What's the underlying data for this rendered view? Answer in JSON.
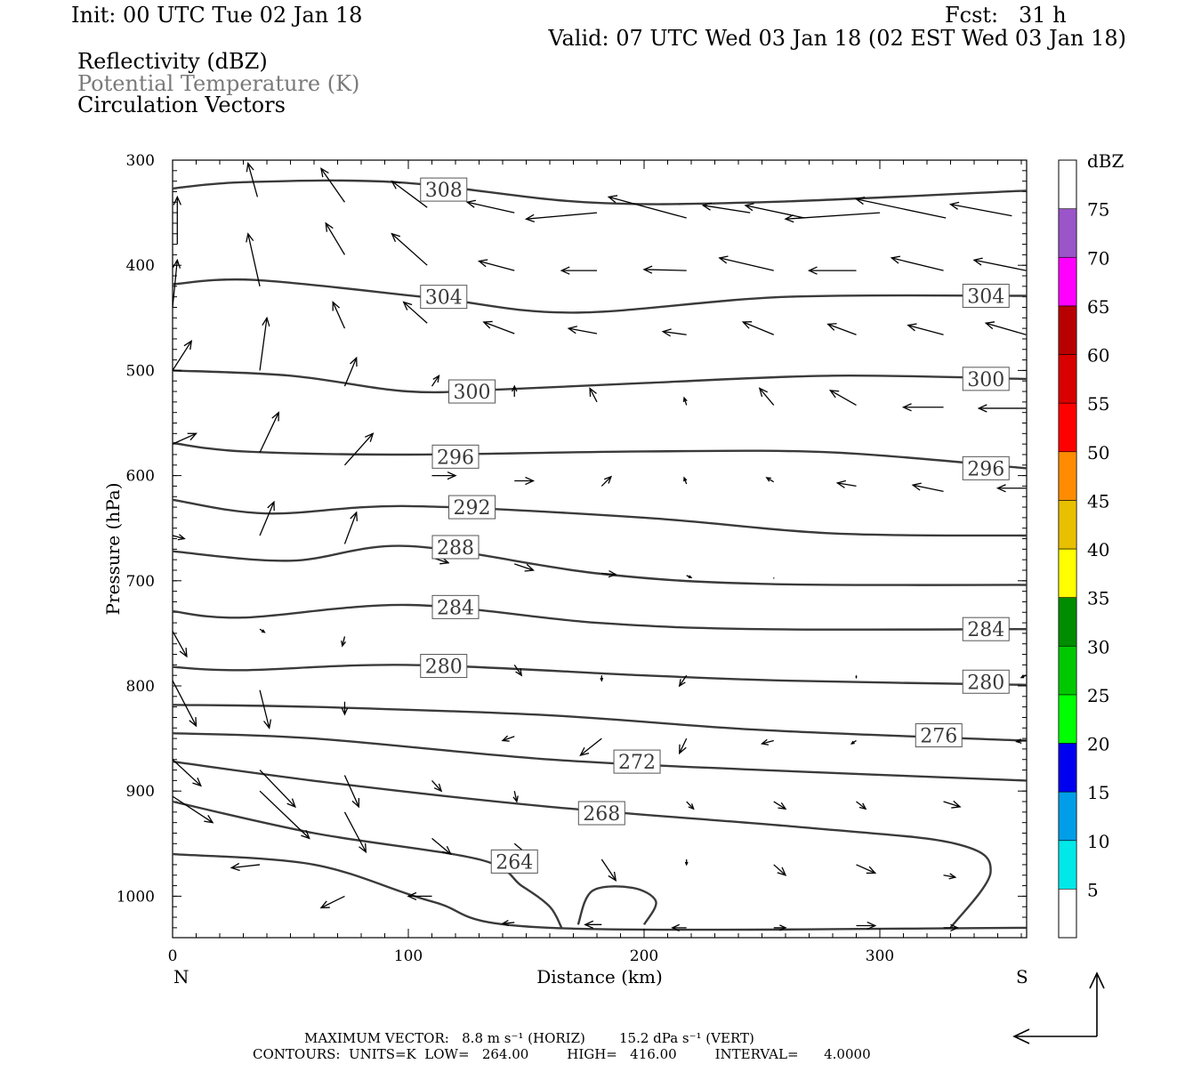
{
  "header": {
    "init": "Init: 00 UTC Tue 02 Jan 18",
    "fcst": "Fcst:   31 h",
    "valid": "Valid: 07 UTC Wed 03 Jan 18 (02 EST Wed 03 Jan 18)"
  },
  "legend": {
    "line1": "Reflectivity (dBZ)",
    "line2": "Potential Temperature (K)",
    "line3": "Circulation Vectors"
  },
  "axes": {
    "ylabel": "Pressure (hPa)",
    "xlabel": "Distance (km)",
    "left_end": "N",
    "right_end": "S"
  },
  "colorbar": {
    "title": "dBZ",
    "colors": [
      "#00e8e8",
      "#009ee8",
      "#0000f0",
      "#00ff00",
      "#00c800",
      "#008c00",
      "#ffff00",
      "#e8c000",
      "#ff8c00",
      "#ff0000",
      "#d80000",
      "#b80000",
      "#ff00ff",
      "#9a55c8"
    ]
  },
  "footer": {
    "line1": "MAXIMUM VECTOR:   8.8 m s⁻¹ (HORIZ)        15.2 dPa s⁻¹ (VERT)",
    "line2": "CONTOURS:  UNITS=K  LOW=   264.00         HIGH=   416.00         INTERVAL=      4.0000"
  },
  "chart_data": {
    "type": "line",
    "title": "",
    "xlabel": "Distance (km)",
    "ylabel": "Pressure (hPa)",
    "xlim": [
      0,
      362
    ],
    "ylim": [
      1040,
      300
    ],
    "x_ticks": [
      0,
      100,
      200,
      300
    ],
    "y_ticks": [
      300,
      400,
      500,
      600,
      700,
      800,
      900,
      1000
    ],
    "colorbar_ticks": [
      5,
      10,
      15,
      20,
      25,
      30,
      35,
      40,
      45,
      50,
      55,
      60,
      65,
      70,
      75
    ],
    "series": [
      {
        "name": "308",
        "x": [
          0,
          30,
          95,
          175,
          250,
          362
        ],
        "y": [
          327,
          321,
          321,
          340,
          340,
          329
        ],
        "label_at": [
          115,
          328
        ]
      },
      {
        "name": "304",
        "x": [
          0,
          35,
          110,
          170,
          260,
          362
        ],
        "y": [
          418,
          414,
          431,
          445,
          430,
          429
        ],
        "label_at": [
          115,
          430
        ],
        "label_at2": [
          345,
          429
        ]
      },
      {
        "name": "300",
        "x": [
          0,
          50,
          100,
          140,
          200,
          280,
          362
        ],
        "y": [
          500,
          505,
          520,
          518,
          512,
          505,
          508
        ],
        "label_at": [
          127,
          520
        ],
        "label_at2": [
          345,
          508
        ]
      },
      {
        "name": "296",
        "x": [
          0,
          30,
          100,
          200,
          280,
          362
        ],
        "y": [
          569,
          577,
          580,
          577,
          578,
          593
        ],
        "label_at": [
          120,
          582
        ],
        "label_at2": [
          345,
          593
        ]
      },
      {
        "name": "292",
        "x": [
          0,
          40,
          100,
          200,
          280,
          362
        ],
        "y": [
          623,
          636,
          629,
          640,
          655,
          657
        ],
        "label_at": [
          127,
          630
        ]
      },
      {
        "name": "288",
        "x": [
          0,
          50,
          100,
          180,
          250,
          362
        ],
        "y": [
          672,
          681,
          667,
          693,
          703,
          704
        ],
        "label_at": [
          120,
          668
        ]
      },
      {
        "name": "284",
        "x": [
          0,
          30,
          100,
          180,
          250,
          362
        ],
        "y": [
          729,
          735,
          723,
          740,
          746,
          746
        ],
        "label_at": [
          120,
          725
        ],
        "label_at2": [
          345,
          746
        ]
      },
      {
        "name": "280",
        "x": [
          0,
          30,
          100,
          200,
          260,
          362
        ],
        "y": [
          782,
          785,
          780,
          790,
          795,
          799
        ],
        "label_at": [
          115,
          781
        ],
        "label_at2": [
          345,
          796
        ]
      },
      {
        "name": "276",
        "x": [
          0,
          60,
          160,
          250,
          362
        ],
        "y": [
          818,
          820,
          828,
          842,
          852
        ],
        "label_at": [
          325,
          847
        ]
      },
      {
        "name": "272",
        "x": [
          0,
          60,
          160,
          250,
          362
        ],
        "y": [
          845,
          850,
          870,
          880,
          890
        ],
        "label_at": [
          197,
          872
        ]
      },
      {
        "name": "268",
        "x": [
          0,
          70,
          160,
          270,
          332,
          347,
          330
        ],
        "y": [
          872,
          893,
          915,
          935,
          950,
          977,
          1030
        ],
        "label_at": [
          182,
          921
        ]
      },
      {
        "name": "264",
        "x": [
          0,
          60,
          130,
          148,
          160,
          165
        ],
        "y": [
          910,
          940,
          965,
          990,
          1010,
          1030
        ],
        "label_at": [
          145,
          967
        ]
      },
      {
        "name": "",
        "x": [
          0,
          60,
          110,
          160,
          362
        ],
        "y": [
          960,
          970,
          1005,
          1030,
          1030
        ]
      },
      {
        "name": "",
        "x": [
          172,
          178,
          195,
          205,
          200
        ],
        "y": [
          1027,
          995,
          992,
          1005,
          1027
        ]
      }
    ],
    "vectors": [
      [
        2,
        380,
        2,
        335
      ],
      [
        36,
        335,
        32,
        303
      ],
      [
        73,
        340,
        63,
        308
      ],
      [
        108,
        345,
        93,
        320
      ],
      [
        145,
        350,
        125,
        340
      ],
      [
        180,
        350,
        150,
        356
      ],
      [
        218,
        355,
        185,
        335
      ],
      [
        245,
        350,
        225,
        343
      ],
      [
        268,
        355,
        243,
        343
      ],
      [
        300,
        350,
        260,
        356
      ],
      [
        328,
        355,
        290,
        337
      ],
      [
        356,
        353,
        330,
        342
      ],
      [
        0,
        440,
        2,
        395
      ],
      [
        37,
        420,
        32,
        370
      ],
      [
        73,
        390,
        65,
        360
      ],
      [
        108,
        400,
        93,
        370
      ],
      [
        145,
        405,
        130,
        396
      ],
      [
        180,
        405,
        165,
        405
      ],
      [
        218,
        405,
        200,
        404
      ],
      [
        255,
        405,
        232,
        393
      ],
      [
        290,
        405,
        270,
        405
      ],
      [
        327,
        405,
        305,
        393
      ],
      [
        362,
        405,
        340,
        395
      ],
      [
        0,
        500,
        8,
        472
      ],
      [
        37,
        500,
        40,
        450
      ],
      [
        73,
        460,
        68,
        435
      ],
      [
        108,
        455,
        98,
        435
      ],
      [
        145,
        465,
        132,
        454
      ],
      [
        180,
        465,
        168,
        460
      ],
      [
        218,
        466,
        208,
        463
      ],
      [
        255,
        466,
        242,
        454
      ],
      [
        290,
        466,
        278,
        456
      ],
      [
        327,
        466,
        312,
        457
      ],
      [
        362,
        466,
        345,
        455
      ],
      [
        73,
        515,
        78,
        488
      ],
      [
        110,
        515,
        113,
        505
      ],
      [
        145,
        525,
        145,
        515
      ],
      [
        180,
        530,
        177,
        517
      ],
      [
        218,
        533,
        217,
        526
      ],
      [
        255,
        533,
        249,
        517
      ],
      [
        290,
        533,
        279,
        519
      ],
      [
        327,
        535,
        310,
        535
      ],
      [
        362,
        536,
        342,
        536
      ],
      [
        0,
        570,
        10,
        560
      ],
      [
        37,
        578,
        45,
        540
      ],
      [
        73,
        590,
        85,
        560
      ],
      [
        110,
        600,
        120,
        600
      ],
      [
        145,
        605,
        153,
        605
      ],
      [
        182,
        610,
        186,
        601
      ],
      [
        218,
        608,
        217,
        602
      ],
      [
        255,
        606,
        252,
        602
      ],
      [
        290,
        610,
        282,
        607
      ],
      [
        327,
        615,
        314,
        609
      ],
      [
        362,
        612,
        350,
        612
      ],
      [
        0,
        657,
        5,
        660
      ],
      [
        37,
        657,
        43,
        625
      ],
      [
        73,
        665,
        78,
        635
      ],
      [
        110,
        678,
        117,
        683
      ],
      [
        145,
        684,
        153,
        690
      ],
      [
        182,
        693,
        188,
        694
      ],
      [
        218,
        695,
        220,
        697
      ],
      [
        255,
        698,
        255,
        697
      ],
      [
        290,
        695,
        290,
        695
      ],
      [
        327,
        697,
        327,
        697
      ],
      [
        362,
        697,
        362,
        697
      ],
      [
        0,
        748,
        6,
        772
      ],
      [
        37,
        746,
        39,
        749
      ],
      [
        73,
        753,
        72,
        762
      ],
      [
        110,
        768,
        110,
        768
      ],
      [
        145,
        780,
        148,
        790
      ],
      [
        182,
        790,
        182,
        795
      ],
      [
        218,
        790,
        215,
        800
      ],
      [
        255,
        795,
        255,
        795
      ],
      [
        290,
        790,
        290,
        792
      ],
      [
        327,
        790,
        327,
        790
      ],
      [
        362,
        790,
        360,
        792
      ],
      [
        0,
        795,
        10,
        838
      ],
      [
        37,
        804,
        41,
        840
      ],
      [
        73,
        815,
        73,
        827
      ],
      [
        110,
        830,
        110,
        830
      ],
      [
        145,
        848,
        140,
        852
      ],
      [
        182,
        850,
        173,
        866
      ],
      [
        218,
        850,
        215,
        864
      ],
      [
        255,
        852,
        250,
        855
      ],
      [
        290,
        852,
        288,
        855
      ],
      [
        327,
        852,
        324,
        855
      ],
      [
        362,
        852,
        358,
        853
      ],
      [
        0,
        870,
        12,
        895
      ],
      [
        37,
        880,
        52,
        915
      ],
      [
        73,
        885,
        79,
        915
      ],
      [
        110,
        890,
        114,
        900
      ],
      [
        145,
        900,
        146,
        910
      ],
      [
        182,
        915,
        182,
        920
      ],
      [
        218,
        910,
        221,
        917
      ],
      [
        255,
        910,
        260,
        917
      ],
      [
        290,
        910,
        294,
        917
      ],
      [
        327,
        910,
        334,
        915
      ],
      [
        0,
        905,
        17,
        930
      ],
      [
        37,
        900,
        58,
        945
      ],
      [
        73,
        920,
        82,
        958
      ],
      [
        110,
        945,
        118,
        960
      ],
      [
        145,
        950,
        153,
        965
      ],
      [
        182,
        965,
        188,
        985
      ],
      [
        218,
        965,
        218,
        970
      ],
      [
        255,
        970,
        260,
        980
      ],
      [
        290,
        970,
        298,
        978
      ],
      [
        327,
        980,
        332,
        982
      ],
      [
        37,
        970,
        25,
        973
      ],
      [
        73,
        1000,
        63,
        1011
      ],
      [
        110,
        1000,
        100,
        1000
      ],
      [
        145,
        1025,
        140,
        1026
      ],
      [
        182,
        1027,
        175,
        1027
      ],
      [
        218,
        1030,
        212,
        1030
      ],
      [
        255,
        1030,
        260,
        1030
      ],
      [
        290,
        1028,
        298,
        1028
      ],
      [
        327,
        1030,
        333,
        1030
      ]
    ]
  }
}
